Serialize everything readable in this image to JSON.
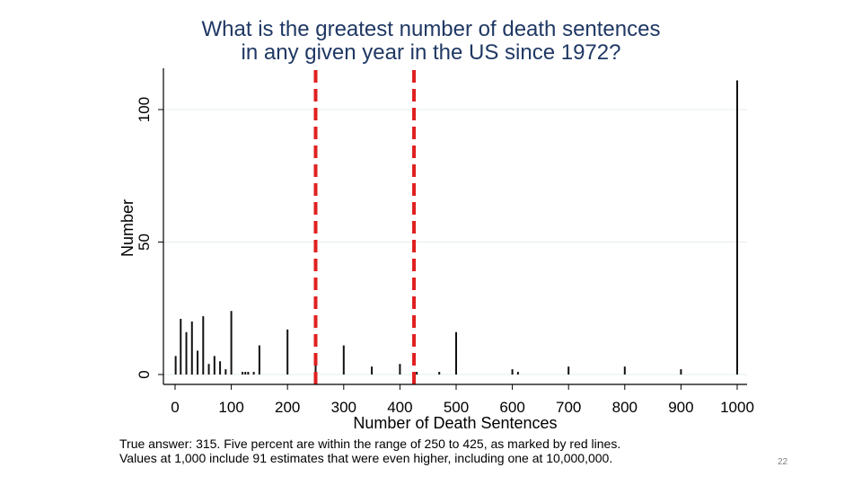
{
  "slide": {
    "title_line1": "What is the greatest number of death sentences",
    "title_line2": "in any given year in the US since 1972?",
    "caption_line1": "True answer: 315. Five percent are within the range of 250 to 425, as marked by red lines.",
    "caption_line2": "Values at 1,000 include 91 estimates that were even higher, including one at 10,000,000.",
    "page_number": "22"
  },
  "chart_data": {
    "type": "bar",
    "title": "What is the greatest number of death sentences in any given year in the US since 1972?",
    "xlabel": "Number of Death Sentences",
    "ylabel": "Number",
    "xlim": [
      -10,
      1010
    ],
    "ylim": [
      0,
      112
    ],
    "xticks": [
      0,
      100,
      200,
      300,
      400,
      500,
      600,
      700,
      800,
      900,
      1000
    ],
    "yticks": [
      0,
      50,
      100
    ],
    "grid": true,
    "reference_lines": [
      {
        "x": 250,
        "color": "#e02020",
        "style": "dashed"
      },
      {
        "x": 425,
        "color": "#e02020",
        "style": "dashed"
      }
    ],
    "bars": [
      {
        "x": 1,
        "y": 7
      },
      {
        "x": 10,
        "y": 21
      },
      {
        "x": 20,
        "y": 16
      },
      {
        "x": 30,
        "y": 20
      },
      {
        "x": 40,
        "y": 9
      },
      {
        "x": 50,
        "y": 22
      },
      {
        "x": 60,
        "y": 4
      },
      {
        "x": 70,
        "y": 7
      },
      {
        "x": 80,
        "y": 5
      },
      {
        "x": 90,
        "y": 2
      },
      {
        "x": 100,
        "y": 24
      },
      {
        "x": 120,
        "y": 1
      },
      {
        "x": 125,
        "y": 1
      },
      {
        "x": 130,
        "y": 1
      },
      {
        "x": 140,
        "y": 1
      },
      {
        "x": 150,
        "y": 11
      },
      {
        "x": 200,
        "y": 17
      },
      {
        "x": 250,
        "y": 4
      },
      {
        "x": 300,
        "y": 11
      },
      {
        "x": 350,
        "y": 3
      },
      {
        "x": 400,
        "y": 4
      },
      {
        "x": 430,
        "y": 1
      },
      {
        "x": 470,
        "y": 1
      },
      {
        "x": 500,
        "y": 16
      },
      {
        "x": 600,
        "y": 2
      },
      {
        "x": 610,
        "y": 1
      },
      {
        "x": 700,
        "y": 3
      },
      {
        "x": 800,
        "y": 3
      },
      {
        "x": 900,
        "y": 2
      },
      {
        "x": 1000,
        "y": 111
      }
    ]
  }
}
